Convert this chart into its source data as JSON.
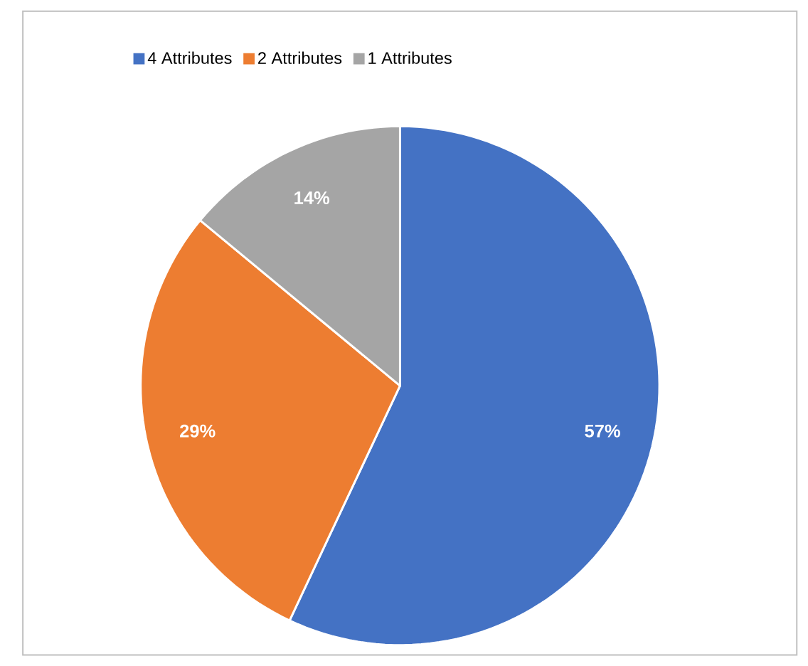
{
  "chart_data": {
    "type": "pie",
    "categories": [
      "4 Attributes",
      "2 Attributes",
      "1 Attributes"
    ],
    "values": [
      57,
      29,
      14
    ],
    "colors": [
      "#4472c4",
      "#ed7d31",
      "#a5a5a5"
    ],
    "value_labels": [
      "57%",
      "29%",
      "14%"
    ],
    "legend": "top"
  }
}
